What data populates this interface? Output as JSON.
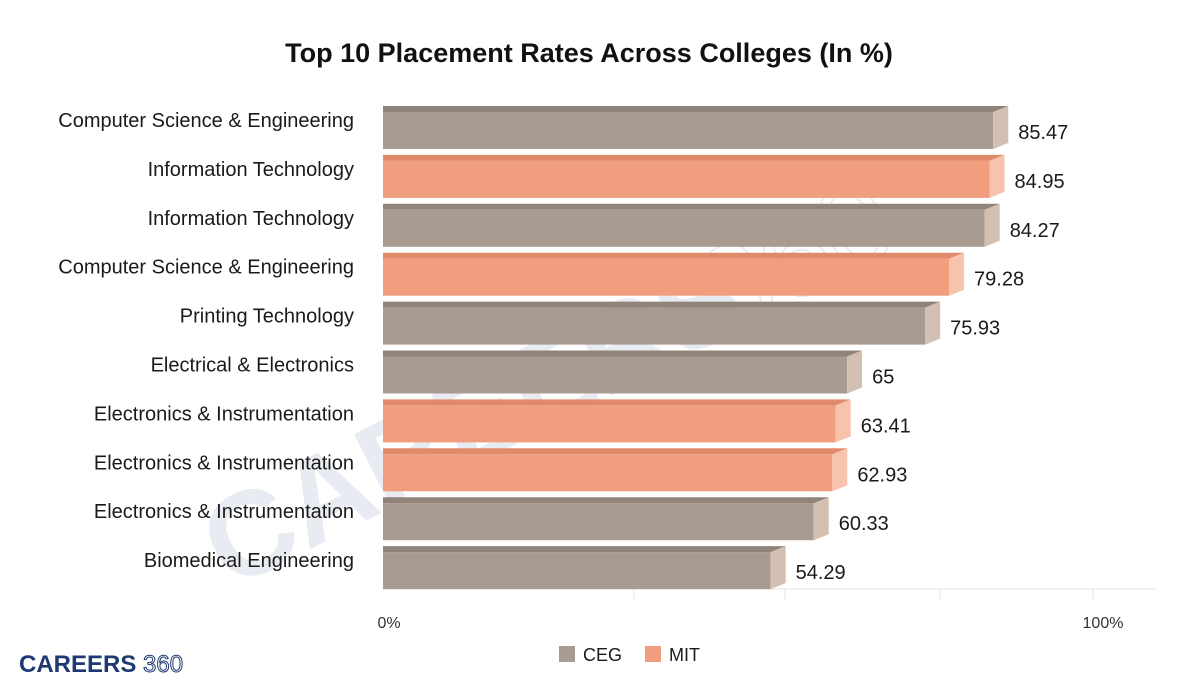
{
  "chart_data": {
    "type": "bar",
    "orientation": "horizontal",
    "title": "Top 10 Placement Rates Across Colleges (In %)",
    "xlim": [
      0,
      100
    ],
    "x_ticks": [
      "0%",
      "100%"
    ],
    "grid": false,
    "legend_position": "bottom-center",
    "series": [
      {
        "name": "CEG",
        "color": "#a89b91",
        "side_color": "#d4bfb3",
        "top_color": "#8f837a"
      },
      {
        "name": "MIT",
        "color": "#f09e7e",
        "side_color": "#f7c3ad",
        "top_color": "#e08a6a"
      }
    ],
    "bars": [
      {
        "label": "Computer Science & Engineering",
        "value": 85.47,
        "value_label": "85.47",
        "series": "CEG"
      },
      {
        "label": "Information Technology",
        "value": 84.95,
        "value_label": "84.95",
        "series": "MIT"
      },
      {
        "label": "Information Technology",
        "value": 84.27,
        "value_label": "84.27",
        "series": "CEG"
      },
      {
        "label": "Computer Science & Engineering",
        "value": 79.28,
        "value_label": "79.28",
        "series": "MIT"
      },
      {
        "label": "Printing Technology",
        "value": 75.93,
        "value_label": "75.93",
        "series": "CEG"
      },
      {
        "label": "Electrical & Electronics",
        "value": 65,
        "value_label": "65",
        "series": "CEG"
      },
      {
        "label": "Electronics & Instrumentation",
        "value": 63.41,
        "value_label": "63.41",
        "series": "MIT"
      },
      {
        "label": "Electronics & Instrumentation",
        "value": 62.93,
        "value_label": "62.93",
        "series": "MIT"
      },
      {
        "label": "Electronics & Instrumentation",
        "value": 60.33,
        "value_label": "60.33",
        "series": "CEG"
      },
      {
        "label": "Biomedical Engineering",
        "value": 54.29,
        "value_label": "54.29",
        "series": "CEG"
      }
    ]
  },
  "branding": {
    "logo_bold": "CAREERS",
    "logo_thin": "360",
    "watermark_bold": "CAREERS",
    "watermark_thin": "360"
  }
}
